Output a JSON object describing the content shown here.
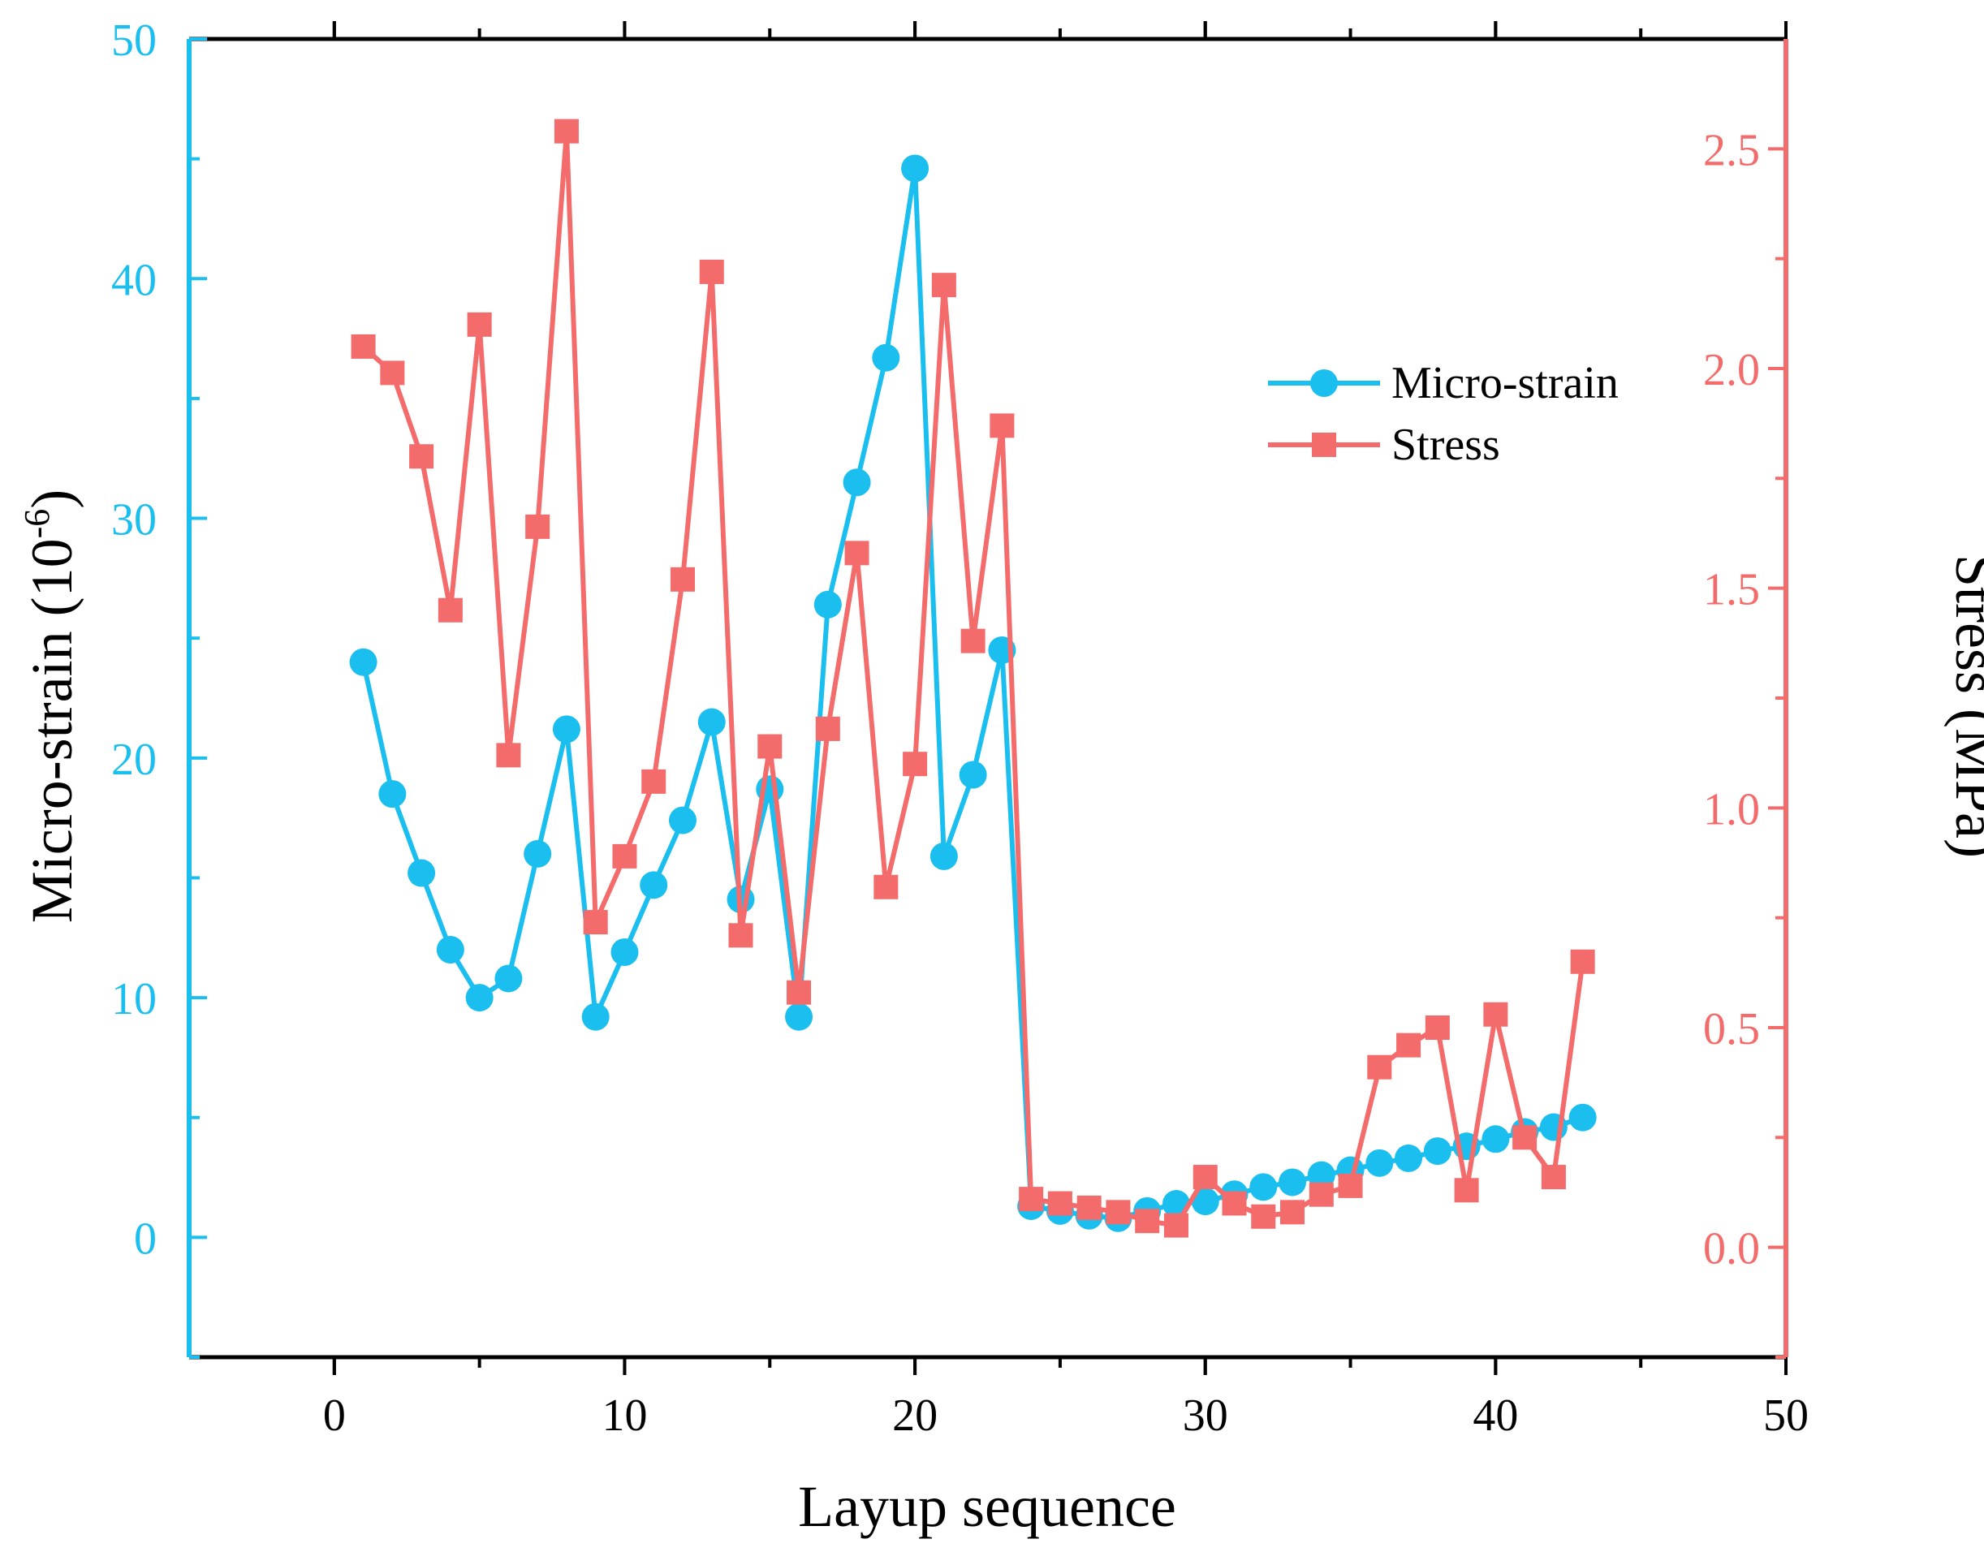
{
  "chart_data": {
    "type": "line",
    "x": [
      1,
      2,
      3,
      4,
      5,
      6,
      7,
      8,
      9,
      10,
      11,
      12,
      13,
      14,
      15,
      16,
      17,
      18,
      19,
      20,
      21,
      22,
      23,
      24,
      25,
      26,
      27,
      28,
      29,
      30,
      31,
      32,
      33,
      34,
      35,
      36,
      37,
      38,
      39,
      40,
      41,
      42,
      43
    ],
    "series": [
      {
        "name": "Micro-strain",
        "axis": "left",
        "color": "#1ABFEF",
        "marker": "circle",
        "values": [
          24.0,
          18.5,
          15.2,
          12.0,
          10.0,
          10.8,
          16.0,
          21.2,
          9.2,
          11.9,
          14.7,
          17.4,
          21.5,
          14.1,
          18.7,
          9.2,
          26.4,
          31.5,
          36.7,
          44.6,
          15.9,
          19.3,
          24.5,
          1.3,
          1.1,
          0.9,
          0.8,
          1.1,
          1.4,
          1.5,
          1.8,
          2.1,
          2.3,
          2.6,
          2.8,
          3.1,
          3.3,
          3.6,
          3.8,
          4.1,
          4.4,
          4.6,
          5.0
        ]
      },
      {
        "name": "Stress",
        "axis": "right",
        "color": "#F46B6B",
        "marker": "square",
        "values": [
          2.05,
          1.99,
          1.8,
          1.45,
          2.1,
          1.12,
          1.64,
          2.54,
          0.74,
          0.89,
          1.06,
          1.52,
          2.22,
          0.71,
          1.14,
          0.58,
          1.18,
          1.58,
          0.82,
          1.1,
          2.19,
          1.38,
          1.87,
          0.11,
          0.1,
          0.09,
          0.08,
          0.06,
          0.05,
          0.16,
          0.1,
          0.07,
          0.08,
          0.12,
          0.14,
          0.41,
          0.46,
          0.5,
          0.13,
          0.53,
          0.25,
          0.16,
          0.65
        ]
      }
    ],
    "title": "",
    "xlabel": "Layup sequence",
    "ylabel": "Micro-strain (10",
    "ylabel_sup": "-6",
    "ylabel_tail": ")",
    "y2label": "Stress (MPa)",
    "xlim": [
      -5,
      50
    ],
    "ylim": [
      -5,
      50
    ],
    "y2lim": [
      -0.25,
      2.75
    ],
    "xticks": [
      "0",
      "10",
      "20",
      "30",
      "40",
      "50"
    ],
    "yticks": [
      "0",
      "10",
      "20",
      "30",
      "40",
      "50"
    ],
    "y2ticks": [
      "0.0",
      "0.5",
      "1.0",
      "1.5",
      "2.0",
      "2.5"
    ],
    "legend": {
      "position": "top-right",
      "entries": [
        "Micro-strain",
        "Stress"
      ]
    },
    "colors": {
      "left_axis": "#1ABFEF",
      "right_axis": "#F46B6B",
      "frame": "#000000"
    }
  }
}
